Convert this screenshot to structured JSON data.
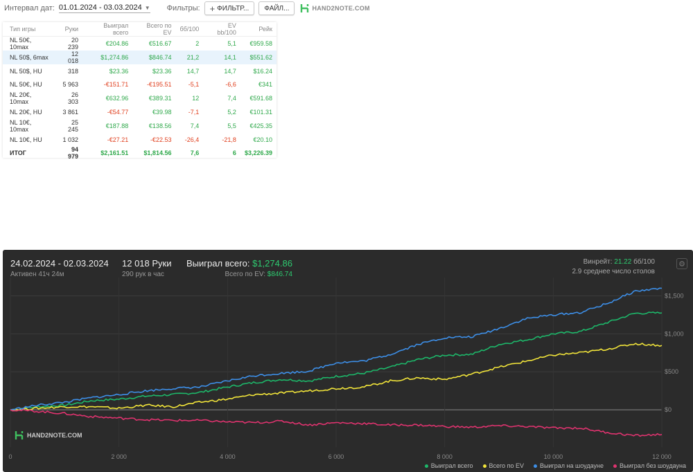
{
  "topbar": {
    "interval_label": "Интервал дат:",
    "date_range": "01.01.2024 - 03.03.2024",
    "filters_label": "Фильтры:",
    "filters_button": "ФИЛЬТР...",
    "file_button": "ФАЙЛ...",
    "logo_text": "HAND2NOTE.COM"
  },
  "table": {
    "headers": [
      "Тип игры",
      "Руки",
      "Выиграл всего",
      "Всего по EV",
      "бб/100",
      "EV bb/100",
      "Рейк"
    ],
    "rows": [
      {
        "game": "NL 50€, 10max",
        "hands": "20 239",
        "won": "€204.86",
        "ev": "€516.67",
        "bb100": "2",
        "evbb": "5,1",
        "rake": "€959.58",
        "won_neg": false,
        "ev_neg": false,
        "bb_neg": false,
        "evbb_neg": false
      },
      {
        "game": "NL 50$, 6max",
        "hands": "12 018",
        "won": "$1,274.86",
        "ev": "$846.74",
        "bb100": "21,2",
        "evbb": "14,1",
        "rake": "$551.62",
        "won_neg": false,
        "ev_neg": false,
        "bb_neg": false,
        "evbb_neg": false
      },
      {
        "game": "NL 50$, HU",
        "hands": "318",
        "won": "$23.36",
        "ev": "$23.36",
        "bb100": "14,7",
        "evbb": "14,7",
        "rake": "$16.24",
        "won_neg": false,
        "ev_neg": false,
        "bb_neg": false,
        "evbb_neg": false
      },
      {
        "game": "NL 50€, HU",
        "hands": "5 963",
        "won": "-€151.71",
        "ev": "-€195.51",
        "bb100": "-5,1",
        "evbb": "-6,6",
        "rake": "€341",
        "won_neg": true,
        "ev_neg": true,
        "bb_neg": true,
        "evbb_neg": true
      },
      {
        "game": "NL 20€, 10max",
        "hands": "26 303",
        "won": "€632.96",
        "ev": "€389.31",
        "bb100": "12",
        "evbb": "7,4",
        "rake": "€591.68",
        "won_neg": false,
        "ev_neg": false,
        "bb_neg": false,
        "evbb_neg": false
      },
      {
        "game": "NL 20€, HU",
        "hands": "3 861",
        "won": "-€54.77",
        "ev": "€39.98",
        "bb100": "-7,1",
        "evbb": "5,2",
        "rake": "€101.31",
        "won_neg": true,
        "ev_neg": false,
        "bb_neg": true,
        "evbb_neg": false
      },
      {
        "game": "NL 10€, 10max",
        "hands": "25 245",
        "won": "€187.88",
        "ev": "€138.56",
        "bb100": "7,4",
        "evbb": "5,5",
        "rake": "€425.35",
        "won_neg": false,
        "ev_neg": false,
        "bb_neg": false,
        "evbb_neg": false
      },
      {
        "game": "NL 10€, HU",
        "hands": "1 032",
        "won": "-€27.21",
        "ev": "-€22.53",
        "bb100": "-26,4",
        "evbb": "-21,8",
        "rake": "€20.10",
        "won_neg": true,
        "ev_neg": true,
        "bb_neg": true,
        "evbb_neg": true
      }
    ],
    "total": {
      "game": "ИТОГ",
      "hands": "94 979",
      "won": "$2,161.51",
      "ev": "$1,814.56",
      "bb100": "7,6",
      "evbb": "6",
      "rake": "$3,226.39"
    },
    "selected_row": 1
  },
  "graph": {
    "date_range": "24.02.2024 - 02.03.2024",
    "active": "Активен 41ч 24м",
    "hands": "12 018 Руки",
    "per_hour": "290 рук в час",
    "won_label": "Выиграл всего:",
    "won_value": "$1,274.86",
    "ev_label": "Всего по EV:",
    "ev_value": "$846.74",
    "winrate_label": "Винрейт:",
    "winrate_value": "21.22",
    "winrate_unit": "бб/100",
    "tables_avg": "2.9 среднее число столов",
    "watermark": "HAND2NOTE.COM",
    "legend": [
      {
        "label": "Выиграл всего",
        "color": "#1db86a"
      },
      {
        "label": "Всего по EV",
        "color": "#f2e53a"
      },
      {
        "label": "Выиграл на шоудауне",
        "color": "#3d8fe8"
      },
      {
        "label": "Выиграл без шоудауна",
        "color": "#e0336f"
      }
    ]
  },
  "chart_data": {
    "type": "line",
    "x_ticks": [
      "0",
      "2 000",
      "4 000",
      "6 000",
      "8 000",
      "10 000",
      "12 000"
    ],
    "y_ticks": [
      "$0",
      "$500",
      "$1,000",
      "$1,500"
    ],
    "xlim": [
      0,
      12000
    ],
    "ylim": [
      -400,
      1650
    ],
    "grid": true,
    "legend_position": "bottom-right",
    "x": [
      0,
      500,
      1000,
      1500,
      2000,
      2500,
      3000,
      3500,
      4000,
      4500,
      5000,
      5500,
      6000,
      6500,
      7000,
      7500,
      8000,
      8500,
      9000,
      9500,
      10000,
      10500,
      11000,
      11500,
      12000
    ],
    "series": [
      {
        "name": "Выиграл всего",
        "color": "#1db86a",
        "values": [
          0,
          40,
          60,
          120,
          140,
          180,
          200,
          230,
          300,
          360,
          400,
          380,
          440,
          480,
          560,
          660,
          720,
          730,
          860,
          920,
          1000,
          1030,
          1150,
          1270,
          1275
        ]
      },
      {
        "name": "Всего по EV",
        "color": "#f2e53a",
        "values": [
          0,
          20,
          40,
          40,
          20,
          60,
          40,
          100,
          140,
          200,
          220,
          250,
          280,
          300,
          380,
          420,
          400,
          470,
          560,
          640,
          720,
          750,
          800,
          870,
          847
        ]
      },
      {
        "name": "Выиграл на шоудауне",
        "color": "#3d8fe8",
        "values": [
          0,
          60,
          100,
          160,
          200,
          250,
          280,
          300,
          380,
          450,
          480,
          510,
          620,
          640,
          730,
          860,
          950,
          960,
          1070,
          1200,
          1250,
          1280,
          1400,
          1560,
          1600
        ]
      },
      {
        "name": "Выиграл без шоудауна",
        "color": "#e0336f",
        "values": [
          0,
          -20,
          -50,
          -90,
          -110,
          -130,
          -140,
          -140,
          -160,
          -170,
          -150,
          -200,
          -170,
          -180,
          -200,
          -200,
          -220,
          -230,
          -210,
          -220,
          -240,
          -240,
          -300,
          -340,
          -325
        ]
      }
    ]
  }
}
